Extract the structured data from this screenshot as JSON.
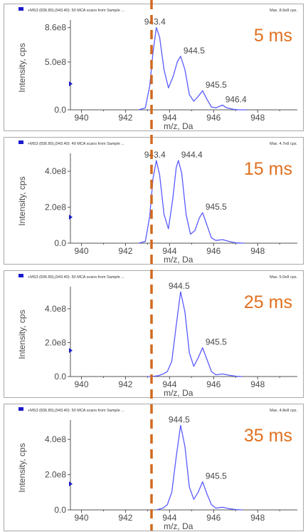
{
  "colors": {
    "trace": "#5a5aff",
    "time_label": "#e07020",
    "marker": "#d2691e",
    "axis": "#555555",
    "header_square": "#1a1acc",
    "side_marker": "#1a1acc"
  },
  "chart_data": [
    {
      "type": "line",
      "header_left": "+MS3 (836.80),(943.40): 50 MCA scans from Sample ...",
      "header_right": "Max. 8.6e8 cps.",
      "time_label": "5 ms",
      "xlabel": "m/z, Da",
      "ylabel": "Intensity, cps",
      "xlim": [
        939.5,
        949.8
      ],
      "ylim": [
        0,
        940000000.0
      ],
      "x_ticks": [
        "940",
        "942",
        "944",
        "946",
        "948"
      ],
      "y_ticks": [
        {
          "label": "0.0",
          "value": 0
        },
        {
          "label": "5.0e8",
          "value": 500000000.0
        },
        {
          "label": "8.6e8",
          "value": 860000000.0
        }
      ],
      "peaks": [
        {
          "label": "943.4",
          "x": 943.4,
          "y": 860000000.0
        },
        {
          "label": "944.5",
          "x": 944.5,
          "y": 560000000.0
        },
        {
          "label": "945.5",
          "x": 945.5,
          "y": 200000000.0
        },
        {
          "label": "946.4",
          "x": 946.4,
          "y": 50000000.0
        }
      ],
      "series": [
        {
          "x": [
            942.6,
            942.9,
            943.1,
            943.25,
            943.4,
            943.55,
            943.75,
            943.95,
            944.15,
            944.35,
            944.5,
            944.7,
            944.9,
            945.1,
            945.3,
            945.5,
            945.7,
            945.9,
            946.1,
            946.3,
            946.4,
            946.6,
            946.9,
            947.2,
            947.5
          ],
          "y": [
            0.0,
            20000000.0,
            250000000.0,
            600000000.0,
            860000000.0,
            760000000.0,
            420000000.0,
            230000000.0,
            340000000.0,
            500000000.0,
            560000000.0,
            420000000.0,
            160000000.0,
            90000000.0,
            140000000.0,
            200000000.0,
            110000000.0,
            30000000.0,
            20000000.0,
            40000000.0,
            50000000.0,
            20000000.0,
            5000000.0,
            0.0,
            0.0
          ]
        }
      ]
    },
    {
      "type": "line",
      "header_left": "+MS3 (836.80),(943.40): 49 MCA scans from Sample ...",
      "header_right": "Max. 4.7e8 cps.",
      "time_label": "15 ms",
      "xlabel": "m/z, Da",
      "ylabel": "Intensity, cps",
      "xlim": [
        939.5,
        949.8
      ],
      "ylim": [
        0,
        500000000.0
      ],
      "x_ticks": [
        "940",
        "942",
        "944",
        "946",
        "948"
      ],
      "y_ticks": [
        {
          "label": "0.0",
          "value": 0
        },
        {
          "label": "2.0e8",
          "value": 200000000.0
        },
        {
          "label": "4.0e8",
          "value": 400000000.0
        }
      ],
      "peaks": [
        {
          "label": "943.4",
          "x": 943.4,
          "y": 460000000.0
        },
        {
          "label": "944.4",
          "x": 944.4,
          "y": 460000000.0
        },
        {
          "label": "945.5",
          "x": 945.5,
          "y": 170000000.0
        }
      ],
      "series": [
        {
          "x": [
            942.6,
            942.9,
            943.1,
            943.25,
            943.4,
            943.55,
            943.75,
            943.95,
            944.15,
            944.3,
            944.4,
            944.55,
            944.75,
            944.95,
            945.15,
            945.35,
            945.5,
            945.7,
            945.9,
            946.1,
            946.4,
            946.7,
            947.0,
            947.4
          ],
          "y": [
            0.0,
            10000000.0,
            150000000.0,
            360000000.0,
            460000000.0,
            380000000.0,
            160000000.0,
            80000000.0,
            250000000.0,
            420000000.0,
            460000000.0,
            390000000.0,
            160000000.0,
            50000000.0,
            70000000.0,
            140000000.0,
            170000000.0,
            100000000.0,
            30000000.0,
            15000000.0,
            20000000.0,
            10000000.0,
            2000000.0,
            0.0
          ]
        }
      ]
    },
    {
      "type": "line",
      "header_left": "+MS3 (836.80),(943.40): 50 MCA scans from Sample ...",
      "header_right": "Max. 5.0e8 cps.",
      "time_label": "25 ms",
      "xlabel": "m/z, Da",
      "ylabel": "Intensity, cps",
      "xlim": [
        939.5,
        949.8
      ],
      "ylim": [
        0,
        530000000.0
      ],
      "x_ticks": [
        "940",
        "942",
        "944",
        "946",
        "948"
      ],
      "y_ticks": [
        {
          "label": "0.0",
          "value": 0
        },
        {
          "label": "2.0e8",
          "value": 200000000.0
        },
        {
          "label": "4.0e8",
          "value": 400000000.0
        }
      ],
      "peaks": [
        {
          "label": "944.5",
          "x": 944.5,
          "y": 500000000.0
        },
        {
          "label": "945.5",
          "x": 945.5,
          "y": 170000000.0
        }
      ],
      "series": [
        {
          "x": [
            943.0,
            943.3,
            943.5,
            943.7,
            943.9,
            944.1,
            944.3,
            944.5,
            944.7,
            944.9,
            945.1,
            945.3,
            945.5,
            945.7,
            945.9,
            946.1,
            946.4,
            946.7,
            947.0,
            947.3
          ],
          "y": [
            0.0,
            2000000.0,
            5000000.0,
            15000000.0,
            30000000.0,
            90000000.0,
            300000000.0,
            500000000.0,
            380000000.0,
            140000000.0,
            60000000.0,
            110000000.0,
            170000000.0,
            100000000.0,
            30000000.0,
            10000000.0,
            15000000.0,
            8000000.0,
            2000000.0,
            0.0
          ]
        }
      ]
    },
    {
      "type": "line",
      "header_left": "+MS3 (836.80),(943.40): 50 MCA scans from Sample ...",
      "header_right": "Max. 4.8e8 cps.",
      "time_label": "35 ms",
      "xlabel": "m/z, Da",
      "ylabel": "Intensity, cps",
      "xlim": [
        939.5,
        949.8
      ],
      "ylim": [
        0,
        510000000.0
      ],
      "x_ticks": [
        "940",
        "942",
        "944",
        "946",
        "948"
      ],
      "y_ticks": [
        {
          "label": "0.0",
          "value": 0
        },
        {
          "label": "2.0e8",
          "value": 200000000.0
        },
        {
          "label": "4.0e8",
          "value": 400000000.0
        }
      ],
      "peaks": [
        {
          "label": "944.5",
          "x": 944.5,
          "y": 480000000.0
        },
        {
          "label": "945.5",
          "x": 945.5,
          "y": 160000000.0
        }
      ],
      "series": [
        {
          "x": [
            943.4,
            943.7,
            943.9,
            944.1,
            944.3,
            944.5,
            944.7,
            944.9,
            945.1,
            945.3,
            945.5,
            945.7,
            945.9,
            946.1,
            946.4,
            946.7,
            947.0,
            947.3
          ],
          "y": [
            0.0,
            10000000.0,
            30000000.0,
            100000000.0,
            300000000.0,
            480000000.0,
            360000000.0,
            130000000.0,
            60000000.0,
            100000000.0,
            160000000.0,
            90000000.0,
            30000000.0,
            10000000.0,
            15000000.0,
            7000000.0,
            2000000.0,
            0.0
          ]
        }
      ]
    }
  ]
}
